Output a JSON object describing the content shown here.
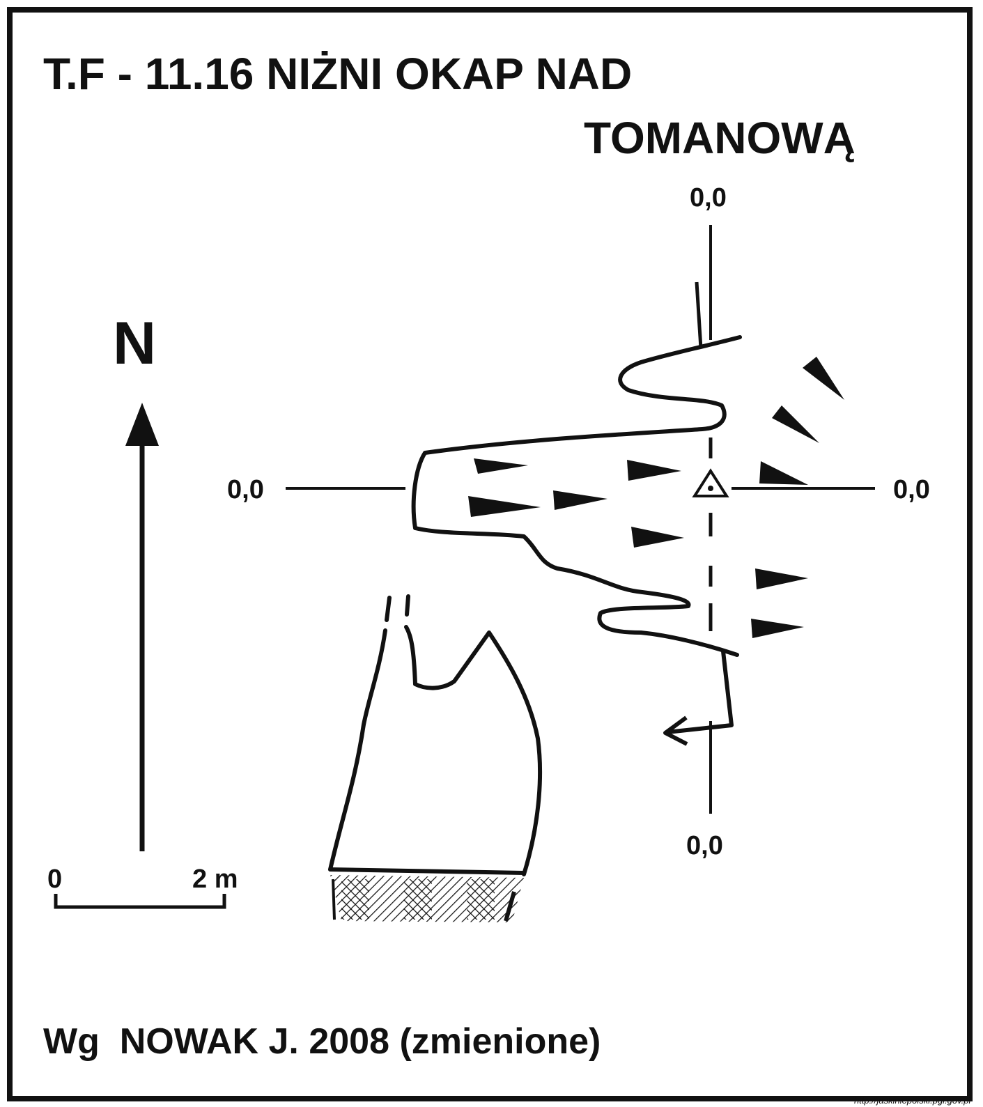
{
  "title": {
    "line1": "T.F - 11.16  NIŻNI OKAP NAD",
    "line2": "TOMANOWĄ"
  },
  "section_labels": {
    "top": "0,0",
    "left": "0,0",
    "right": "0,0",
    "bottom": "0,0"
  },
  "north_label": "N",
  "scale": {
    "start": "0",
    "end": "2 m"
  },
  "source": "Wg  NOWAK J. 2008 (zmienione)",
  "url": "http://jaskiniepolski.pgi.gov.pl",
  "colors": {
    "ink": "#111111",
    "paper": "#ffffff"
  }
}
